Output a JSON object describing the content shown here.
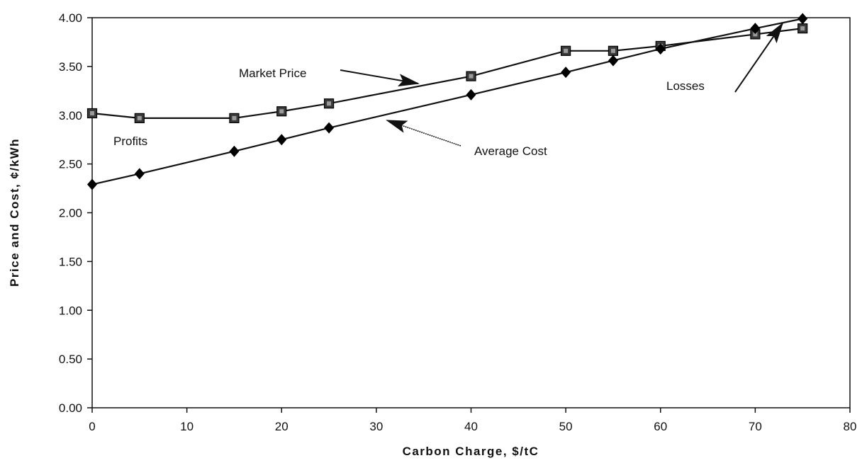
{
  "chart_data": {
    "type": "line",
    "xlabel": "Carbon Charge, $/tC",
    "ylabel": "Price and Cost, ¢/kWh",
    "xlim": [
      0,
      80
    ],
    "ylim": [
      0,
      4
    ],
    "x_ticks": [
      "0",
      "10",
      "20",
      "30",
      "40",
      "50",
      "60",
      "70",
      "80"
    ],
    "y_ticks": [
      "0.00",
      "0.50",
      "1.00",
      "1.50",
      "2.00",
      "2.50",
      "3.00",
      "3.50",
      "4.00"
    ],
    "grid": false,
    "series": [
      {
        "name": "Market Price",
        "marker": "square",
        "color": "#222222",
        "points": [
          [
            0,
            3.02
          ],
          [
            5,
            2.97
          ],
          [
            15,
            2.97
          ],
          [
            20,
            3.04
          ],
          [
            25,
            3.12
          ],
          [
            40,
            3.4
          ],
          [
            50,
            3.66
          ],
          [
            55,
            3.66
          ],
          [
            60,
            3.71
          ],
          [
            70,
            3.83
          ],
          [
            75,
            3.89
          ]
        ]
      },
      {
        "name": "Average Cost",
        "marker": "diamond",
        "color": "#111111",
        "points": [
          [
            0,
            2.29
          ],
          [
            5,
            2.4
          ],
          [
            15,
            2.63
          ],
          [
            20,
            2.75
          ],
          [
            25,
            2.87
          ],
          [
            40,
            3.21
          ],
          [
            50,
            3.44
          ],
          [
            55,
            3.56
          ],
          [
            60,
            3.68
          ],
          [
            70,
            3.89
          ],
          [
            75,
            3.99
          ]
        ]
      }
    ],
    "annotations": [
      {
        "text": "Market Price",
        "x": 17,
        "y": 3.5
      },
      {
        "text": "Average Cost",
        "x": 47,
        "y": 2.85
      },
      {
        "text": "Profits",
        "x": 6,
        "y": 2.95
      },
      {
        "text": "Losses",
        "x": 67,
        "y": 3.7
      }
    ]
  }
}
